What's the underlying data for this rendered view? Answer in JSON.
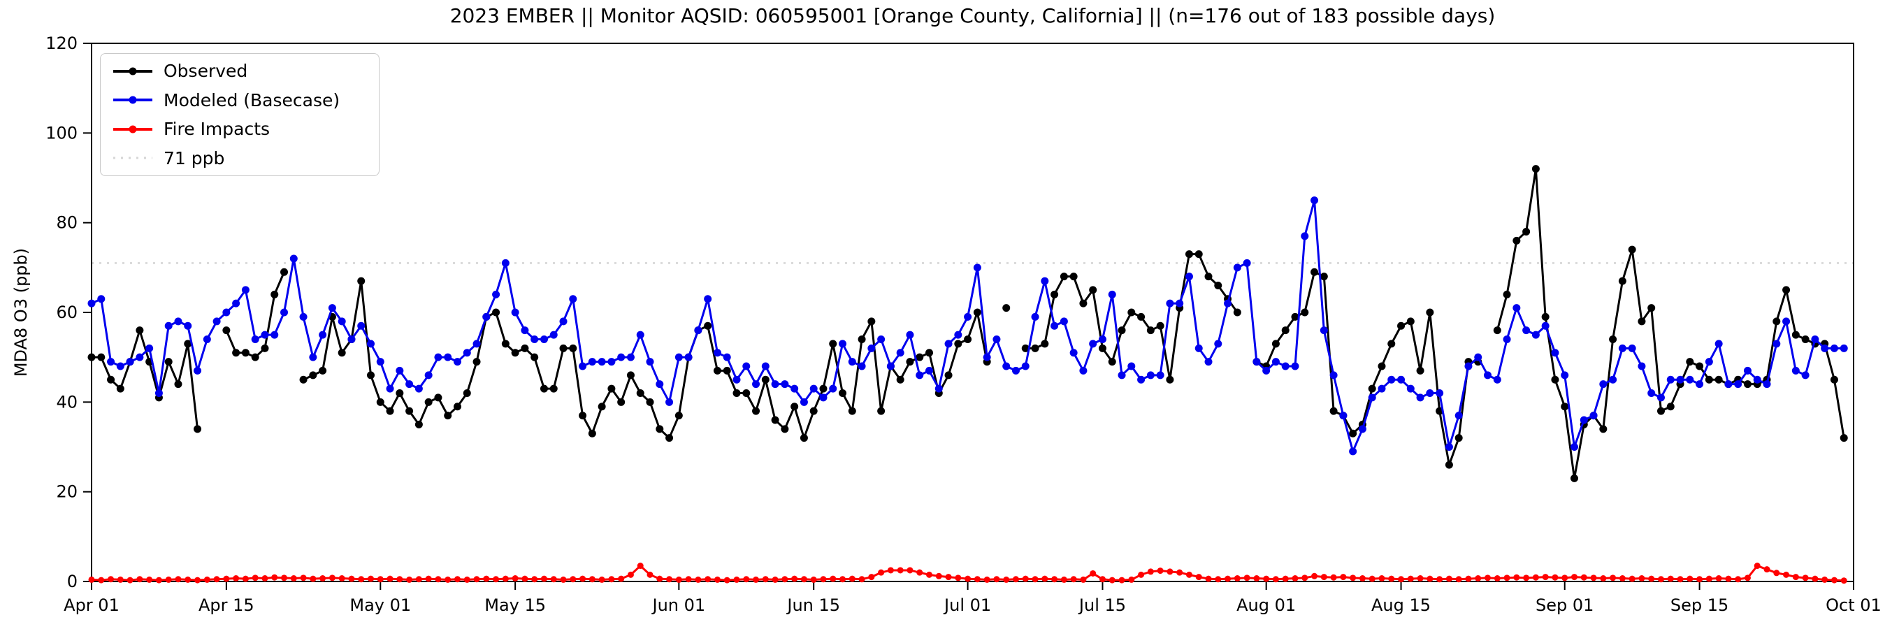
{
  "title": "2023 EMBER || Monitor AQSID: 060595001 [Orange County, California] || (n=176 out of 183 possible days)",
  "ylabel": "MDA8 O3 (ppb)",
  "legend": [
    {
      "label": "Observed",
      "color": "#000000",
      "style": "solid-marker"
    },
    {
      "label": "Modeled (Basecase)",
      "color": "#0000ee",
      "style": "solid-marker"
    },
    {
      "label": "Fire Impacts",
      "color": "#ff0000",
      "style": "solid-marker"
    },
    {
      "label": "71 ppb",
      "color": "#d6d6d6",
      "style": "dotted"
    }
  ],
  "chart_data": {
    "type": "line",
    "x_start": "Apr 01",
    "x_end": "Oct 01",
    "x_tick_labels": [
      "Apr 01",
      "Apr 15",
      "May 01",
      "May 15",
      "Jun 01",
      "Jun 15",
      "Jul 01",
      "Jul 15",
      "Aug 01",
      "Aug 15",
      "Sep 01",
      "Sep 15",
      "Oct 01"
    ],
    "x_tick_day_index": [
      0,
      14,
      30,
      44,
      61,
      75,
      91,
      105,
      122,
      136,
      153,
      167,
      183
    ],
    "x_total_days": 183,
    "ylim": [
      0,
      120
    ],
    "y_ticks": [
      0,
      20,
      40,
      60,
      80,
      100,
      120
    ],
    "grid": false,
    "legend_position": "upper-left",
    "reference_line": {
      "value": 71,
      "label": "71 ppb",
      "color": "#d6d6d6"
    },
    "series": [
      {
        "name": "Observed",
        "color": "#000000",
        "values": [
          50,
          50,
          45,
          43,
          49,
          56,
          49,
          41,
          49,
          44,
          53,
          34,
          null,
          null,
          56,
          51,
          51,
          50,
          52,
          64,
          69,
          null,
          45,
          46,
          47,
          59,
          51,
          54,
          67,
          46,
          40,
          38,
          42,
          38,
          35,
          40,
          41,
          37,
          39,
          42,
          49,
          59,
          60,
          53,
          51,
          52,
          50,
          43,
          43,
          52,
          52,
          37,
          33,
          39,
          43,
          40,
          46,
          42,
          40,
          34,
          32,
          37,
          50,
          56,
          57,
          47,
          47,
          42,
          42,
          38,
          45,
          36,
          34,
          39,
          32,
          38,
          43,
          53,
          42,
          38,
          54,
          58,
          38,
          48,
          45,
          49,
          50,
          51,
          42,
          46,
          53,
          54,
          60,
          49,
          null,
          61,
          null,
          52,
          52,
          53,
          64,
          68,
          68,
          62,
          65,
          52,
          49,
          56,
          60,
          59,
          56,
          57,
          45,
          61,
          73,
          73,
          68,
          66,
          63,
          60,
          null,
          49,
          48,
          53,
          56,
          59,
          60,
          69,
          68,
          38,
          37,
          33,
          35,
          43,
          48,
          53,
          57,
          58,
          47,
          60,
          38,
          26,
          32,
          49,
          49,
          null,
          56,
          64,
          76,
          78,
          92,
          59,
          45,
          39,
          23,
          35,
          37,
          34,
          54,
          67,
          74,
          58,
          61,
          38,
          39,
          44,
          49,
          48,
          45,
          45,
          44,
          45,
          44,
          44,
          45,
          58,
          65,
          55,
          54,
          53,
          53,
          45,
          32
        ]
      },
      {
        "name": "Modeled (Basecase)",
        "color": "#0000ee",
        "values": [
          62,
          63,
          49,
          48,
          49,
          50,
          52,
          42,
          57,
          58,
          57,
          47,
          54,
          58,
          60,
          62,
          65,
          54,
          55,
          55,
          60,
          72,
          59,
          50,
          55,
          61,
          58,
          54,
          57,
          53,
          49,
          43,
          47,
          44,
          43,
          46,
          50,
          50,
          49,
          51,
          53,
          59,
          64,
          71,
          60,
          56,
          54,
          54,
          55,
          58,
          63,
          48,
          49,
          49,
          49,
          50,
          50,
          55,
          49,
          44,
          40,
          50,
          50,
          56,
          63,
          51,
          50,
          45,
          48,
          44,
          48,
          44,
          44,
          43,
          40,
          43,
          41,
          43,
          53,
          49,
          48,
          52,
          54,
          48,
          51,
          55,
          46,
          47,
          43,
          53,
          55,
          59,
          70,
          50,
          54,
          48,
          47,
          48,
          59,
          67,
          57,
          58,
          51,
          47,
          53,
          54,
          64,
          46,
          48,
          45,
          46,
          46,
          62,
          62,
          68,
          52,
          49,
          53,
          62,
          70,
          71,
          49,
          47,
          49,
          48,
          48,
          77,
          85,
          56,
          46,
          37,
          29,
          34,
          41,
          43,
          45,
          45,
          43,
          41,
          42,
          42,
          30,
          37,
          48,
          50,
          46,
          45,
          54,
          61,
          56,
          55,
          57,
          51,
          46,
          30,
          36,
          37,
          44,
          45,
          52,
          52,
          48,
          42,
          41,
          45,
          45,
          45,
          44,
          49,
          53,
          44,
          44,
          47,
          45,
          44,
          53,
          58,
          47,
          46,
          54,
          52,
          52,
          52
        ]
      },
      {
        "name": "Fire Impacts",
        "color": "#ff0000",
        "values": [
          0.4,
          0.3,
          0.5,
          0.4,
          0.3,
          0.5,
          0.4,
          0.3,
          0.4,
          0.5,
          0.4,
          0.3,
          0.4,
          0.5,
          0.6,
          0.7,
          0.6,
          0.8,
          0.7,
          0.9,
          0.8,
          0.7,
          0.8,
          0.6,
          0.7,
          0.8,
          0.7,
          0.6,
          0.5,
          0.6,
          0.5,
          0.6,
          0.5,
          0.4,
          0.5,
          0.6,
          0.5,
          0.4,
          0.5,
          0.4,
          0.5,
          0.6,
          0.5,
          0.6,
          0.7,
          0.6,
          0.5,
          0.6,
          0.5,
          0.4,
          0.5,
          0.6,
          0.5,
          0.4,
          0.5,
          0.6,
          1.5,
          3.5,
          1.5,
          0.6,
          0.5,
          0.4,
          0.5,
          0.4,
          0.5,
          0.4,
          0.3,
          0.4,
          0.5,
          0.4,
          0.5,
          0.4,
          0.5,
          0.6,
          0.5,
          0.4,
          0.5,
          0.6,
          0.5,
          0.6,
          0.5,
          1.0,
          2.0,
          2.5,
          2.5,
          2.5,
          2.0,
          1.5,
          1.2,
          1.0,
          0.8,
          0.6,
          0.5,
          0.4,
          0.5,
          0.4,
          0.5,
          0.6,
          0.5,
          0.6,
          0.5,
          0.4,
          0.5,
          0.4,
          1.8,
          0.5,
          0.3,
          0.3,
          0.4,
          1.5,
          2.2,
          2.4,
          2.2,
          2.0,
          1.5,
          1.0,
          0.6,
          0.5,
          0.6,
          0.7,
          0.8,
          0.7,
          0.6,
          0.5,
          0.6,
          0.7,
          0.8,
          1.2,
          1.0,
          0.9,
          1.0,
          0.8,
          0.7,
          0.6,
          0.7,
          0.6,
          0.5,
          0.6,
          0.7,
          0.6,
          0.5,
          0.6,
          0.5,
          0.6,
          0.7,
          0.8,
          0.7,
          0.8,
          0.9,
          0.8,
          0.9,
          1.0,
          0.9,
          0.8,
          1.0,
          0.9,
          0.8,
          0.7,
          0.8,
          0.7,
          0.6,
          0.7,
          0.6,
          0.5,
          0.6,
          0.5,
          0.6,
          0.5,
          0.6,
          0.7,
          0.6,
          0.5,
          0.8,
          3.5,
          2.7,
          1.9,
          1.5,
          1.0,
          0.8,
          0.6,
          0.4,
          0.3,
          0.2
        ]
      }
    ]
  },
  "geometry_note": "time series of daily MDA8 ozone, Apr 01 - Sep 30 2023"
}
